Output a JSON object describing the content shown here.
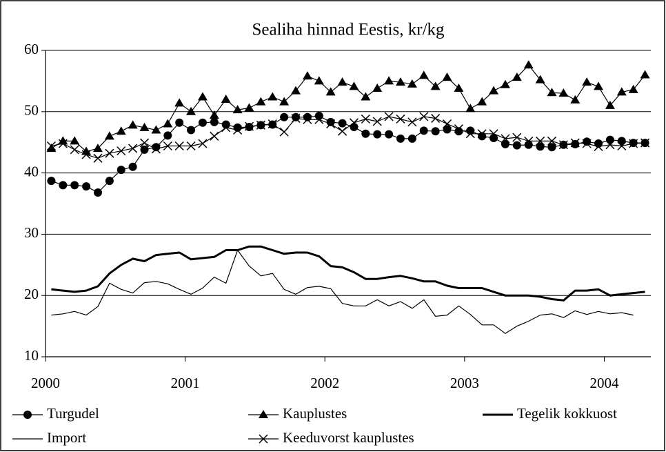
{
  "chart_data": {
    "type": "line",
    "title": "Sealiha hinnad Eestis, kr/kg",
    "categories": [
      "2000",
      null,
      null,
      null,
      null,
      null,
      null,
      null,
      null,
      null,
      null,
      null,
      "2001",
      null,
      null,
      null,
      null,
      null,
      null,
      null,
      null,
      null,
      null,
      null,
      "2002",
      null,
      null,
      null,
      null,
      null,
      null,
      null,
      null,
      null,
      null,
      null,
      "2003",
      null,
      null,
      null,
      null,
      null,
      null,
      null,
      null,
      null,
      null,
      null,
      "2004",
      null,
      null,
      null
    ],
    "ylim": [
      10,
      60
    ],
    "yticks": [
      10,
      20,
      30,
      40,
      50,
      60
    ],
    "grid": true,
    "legend": "bottom",
    "series": [
      {
        "name": "Turgudel",
        "color": "#000000",
        "marker": "circle",
        "line_style": "thin",
        "values": [
          38.7,
          38.0,
          38.0,
          37.8,
          36.8,
          38.7,
          40.5,
          41.0,
          43.8,
          44.2,
          46.1,
          48.2,
          47.0,
          48.2,
          48.3,
          47.9,
          47.4,
          47.5,
          47.8,
          47.9,
          49.1,
          49.1,
          49.1,
          49.3,
          48.3,
          48.1,
          47.5,
          46.4,
          46.3,
          46.3,
          45.6,
          45.6,
          46.9,
          46.8,
          47.1,
          46.8,
          46.9,
          46.0,
          45.7,
          44.7,
          44.5,
          44.6,
          44.3,
          44.2,
          44.6,
          44.7,
          45.1,
          44.8,
          45.4,
          45.2,
          44.9,
          44.9
        ]
      },
      {
        "name": "Kauplustes",
        "color": "#000000",
        "marker": "triangle",
        "line_style": "thin",
        "values": [
          44.0,
          45.2,
          45.2,
          43.5,
          44.0,
          46.0,
          46.8,
          47.8,
          47.4,
          47.0,
          48.0,
          51.4,
          50.0,
          52.4,
          49.4,
          52.0,
          50.3,
          50.6,
          51.6,
          52.4,
          51.6,
          53.4,
          55.8,
          55.0,
          53.2,
          54.8,
          54.1,
          52.4,
          53.8,
          55.0,
          54.8,
          54.5,
          55.9,
          54.1,
          55.6,
          53.8,
          50.5,
          51.6,
          53.4,
          54.4,
          55.6,
          57.6,
          55.2,
          53.1,
          53.0,
          51.9,
          54.8,
          54.1,
          51.0,
          53.2,
          53.6,
          56.0
        ]
      },
      {
        "name": "Tegelik kokkuost",
        "color": "#000000",
        "marker": "none",
        "line_style": "thick",
        "values": [
          21.0,
          20.8,
          20.6,
          20.8,
          21.5,
          23.6,
          25.0,
          26.0,
          25.6,
          26.6,
          26.8,
          27.0,
          25.9,
          26.1,
          26.3,
          27.4,
          27.4,
          28.0,
          28.0,
          27.4,
          26.8,
          27.0,
          27.0,
          26.4,
          24.8,
          24.6,
          23.8,
          22.7,
          22.7,
          23.0,
          23.2,
          22.8,
          22.3,
          22.3,
          21.6,
          21.2,
          21.2,
          21.2,
          20.6,
          20.0,
          20.0,
          20.0,
          19.8,
          19.4,
          19.2,
          20.8,
          20.8,
          21.0,
          20.0,
          20.2,
          20.4,
          20.6
        ]
      },
      {
        "name": "Import",
        "color": "#000000",
        "marker": "none",
        "line_style": "thin",
        "values": [
          16.8,
          17.0,
          17.4,
          16.8,
          18.2,
          22.0,
          21.0,
          20.4,
          22.1,
          22.3,
          21.9,
          21.0,
          20.2,
          21.2,
          23.0,
          22.0,
          27.4,
          24.8,
          23.2,
          23.6,
          21.0,
          20.2,
          21.3,
          21.5,
          21.1,
          18.7,
          18.3,
          18.3,
          19.3,
          18.3,
          19.0,
          17.9,
          19.3,
          16.6,
          16.8,
          18.3,
          16.9,
          15.2,
          15.2,
          13.8,
          15.0,
          15.8,
          16.8,
          17.0,
          16.4,
          17.5,
          16.9,
          17.4,
          17.0,
          17.2,
          16.8,
          null
        ]
      },
      {
        "name": "Keeduvorst kauplustes",
        "color": "#000000",
        "marker": "x",
        "line_style": "thin",
        "values": [
          44.4,
          44.8,
          43.8,
          43.0,
          42.4,
          43.2,
          43.6,
          44.0,
          44.9,
          43.9,
          44.4,
          44.4,
          44.4,
          44.8,
          46.0,
          47.4,
          47.0,
          47.6,
          47.8,
          48.0,
          46.7,
          48.9,
          48.7,
          48.7,
          48.0,
          46.8,
          48.2,
          48.8,
          48.4,
          49.2,
          48.8,
          48.3,
          49.2,
          48.9,
          48.0,
          47.2,
          46.4,
          46.4,
          46.4,
          45.6,
          45.8,
          45.2,
          45.2,
          45.2,
          44.6,
          44.9,
          44.8,
          44.3,
          44.6,
          44.4,
          44.8,
          44.9
        ]
      }
    ]
  }
}
